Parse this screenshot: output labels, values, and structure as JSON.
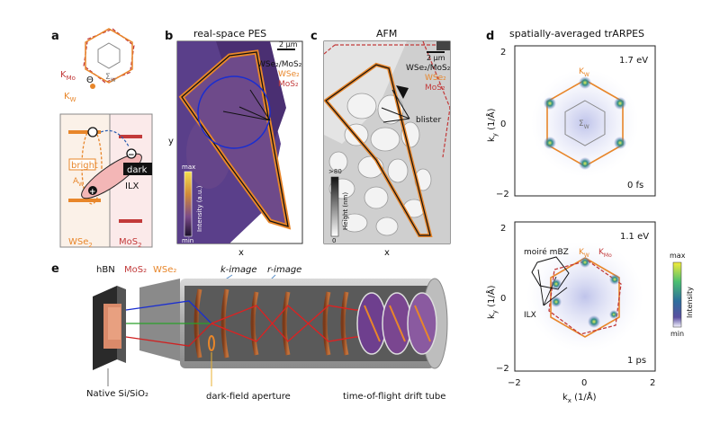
{
  "panels": {
    "a": {
      "label": "a",
      "k_mo": "K",
      "k_mo_sub": "Mo",
      "k_w": "K",
      "k_w_sub": "W",
      "sigma": "Σ",
      "sigma_sub": "W",
      "bright": "bright",
      "dark": "dark",
      "a_w": "A",
      "a_w_sub": "W",
      "ilx": "ILX",
      "wse2": "WSe",
      "wse2_sub": "2",
      "mos2": "MoS",
      "mos2_sub": "2"
    },
    "b": {
      "label": "b",
      "title": "real-space PES",
      "scalebar": "2 μm",
      "legend_pair": "WSe₂/MoS₂",
      "legend_wse2": "WSe₂",
      "legend_mos2": "MoS₂",
      "cbar_max": "max",
      "cbar_min": "min",
      "cbar_label": "Intensity (a.u.)",
      "xlabel": "x",
      "ylabel": "y"
    },
    "c": {
      "label": "c",
      "title": "AFM",
      "scalebar": "2 μm",
      "legend_pair": "WSe₂/MoS₂",
      "legend_wse2": "WSe₂",
      "legend_mos2": "MoS₂",
      "blister": "blister",
      "cbar_top": ">80",
      "cbar_bottom": "0",
      "cbar_label": "Height (nm)",
      "xlabel": "x"
    },
    "d": {
      "label": "d",
      "title": "spatially-averaged trARPES",
      "top": {
        "energy": "1.7 eV",
        "time": "0 fs",
        "k_w": "K",
        "k_w_sub": "W",
        "sigma": "Σ",
        "sigma_sub": "W",
        "yticks": [
          "2",
          "0",
          "−2"
        ],
        "ylabel": "k",
        "ylabel_sub": "y",
        "ylabel_unit": " (1/Å)"
      },
      "bottom": {
        "energy": "1.1 eV",
        "time": "1 ps",
        "k_w": "K",
        "k_w_sub": "W",
        "k_mo": "K",
        "k_mo_sub": "Mo",
        "moire": "moiré mBZ",
        "ilx": "ILX",
        "yticks": [
          "2",
          "0",
          "−2"
        ],
        "xticks": [
          "−2",
          "0",
          "2"
        ],
        "xlabel": "k",
        "xlabel_sub": "x",
        "xlabel_unit": " (1/Å)",
        "ylabel": "k",
        "ylabel_sub": "y",
        "ylabel_unit": " (1/Å)",
        "cbar_max": "max",
        "cbar_min": "min",
        "cbar_label": "Intensity"
      }
    },
    "e": {
      "label": "e",
      "hbn": "hBN",
      "mos2": "MoS₂",
      "wse2": "WSe₂",
      "k_image": "k-image",
      "r_image": "r-image",
      "substrate": "Native Si/SiO₂",
      "aperture": "dark-field aperture",
      "drift": "time-of-flight drift tube"
    }
  },
  "colors": {
    "wse2": "#e8862a",
    "mos2": "#c23a3a",
    "sigma": "#777777",
    "pes_bg": "#5a3f8a",
    "afm_bg": "#cfcfcf"
  }
}
